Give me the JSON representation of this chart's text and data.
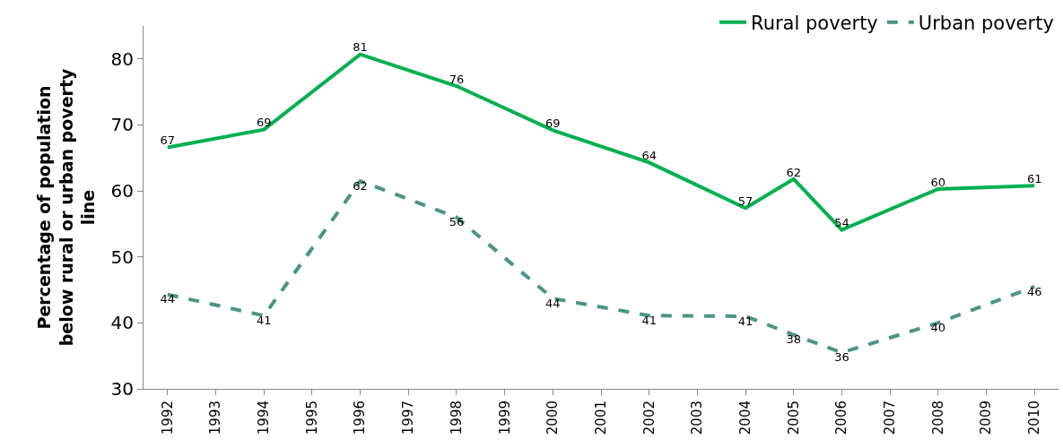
{
  "chart_data": {
    "type": "line",
    "ylabel": "Percentage of population\nbelow rural or urban poverty\nline",
    "categories": [
      "1992",
      "1993",
      "1994",
      "1995",
      "1996",
      "1997",
      "1998",
      "1999",
      "2000",
      "2001",
      "2002",
      "2003",
      "2004",
      "2005",
      "2006",
      "2007",
      "2008",
      "2009",
      "2010"
    ],
    "series": [
      {
        "name": "Rural poverty",
        "color": "#00b050",
        "line_style": "solid",
        "values": [
          66.6,
          null,
          69.3,
          null,
          80.7,
          null,
          75.9,
          null,
          69.2,
          null,
          64.3,
          null,
          57.4,
          61.8,
          54.1,
          null,
          60.3,
          null,
          60.8
        ],
        "value_labels": [
          "67",
          null,
          "69",
          null,
          "81",
          null,
          "76",
          null,
          "69",
          null,
          "64",
          null,
          "57",
          "62",
          "54",
          null,
          "60",
          null,
          "61"
        ]
      },
      {
        "name": "Urban poverty",
        "color": "#4a9484",
        "line_style": "dashed",
        "values": [
          44.3,
          null,
          41.1,
          null,
          61.5,
          null,
          56.0,
          null,
          43.7,
          null,
          41.1,
          null,
          41.0,
          38.2,
          35.5,
          null,
          40.0,
          null,
          45.5
        ],
        "value_labels": [
          "44",
          null,
          "41",
          null,
          "62",
          null,
          "56",
          null,
          "44",
          null,
          "41",
          null,
          "41",
          "38",
          "36",
          null,
          "40",
          null,
          "46"
        ]
      }
    ],
    "ylim": [
      30,
      85
    ],
    "yticks": [
      30,
      40,
      50,
      60,
      70,
      80
    ],
    "grid": false,
    "legend": "top right",
    "marker": "none"
  }
}
